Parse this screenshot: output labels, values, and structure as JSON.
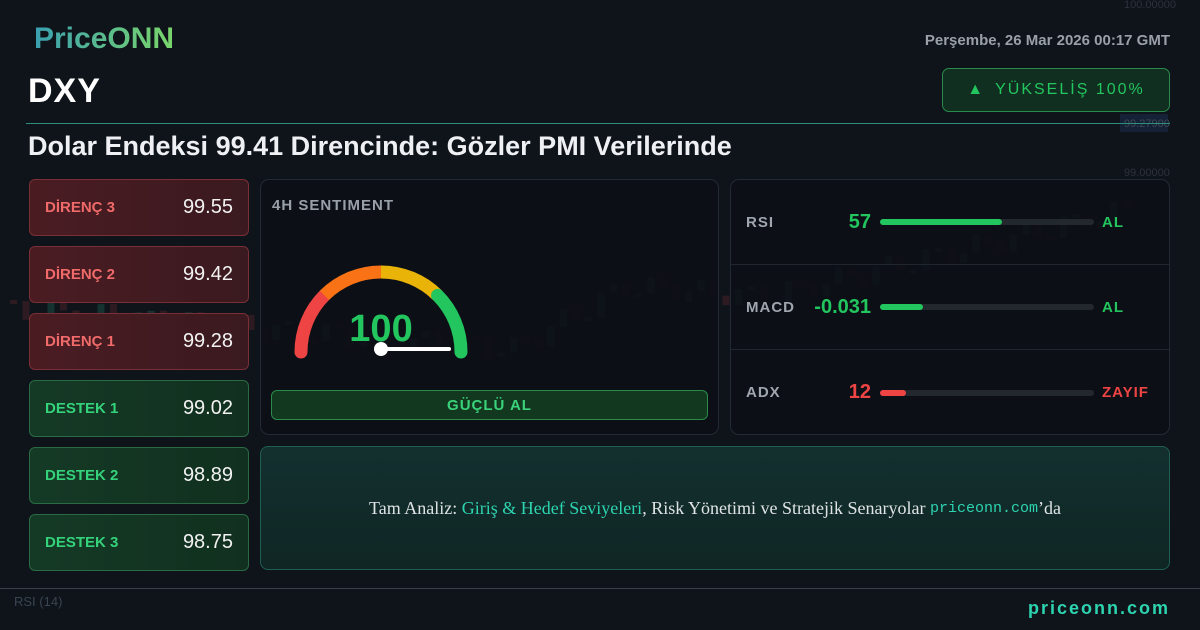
{
  "brand": {
    "logo": "PriceONN",
    "site": "priceonn.com"
  },
  "header": {
    "ticker": "DXY",
    "date": "Perşembe, 26 Mar 2026 00:17 GMT",
    "trend_label": "YÜKSELİŞ 100%",
    "trend_icon": "triangle-up-icon",
    "headline": "Dolar Endeksi 99.41 Direncinde: Gözler PMI Verilerinde"
  },
  "levels": [
    {
      "name": "DİRENÇ 3",
      "value": "99.55",
      "type": "resistance"
    },
    {
      "name": "DİRENÇ 2",
      "value": "99.42",
      "type": "resistance"
    },
    {
      "name": "DİRENÇ 1",
      "value": "99.28",
      "type": "resistance"
    },
    {
      "name": "DESTEK 1",
      "value": "99.02",
      "type": "support"
    },
    {
      "name": "DESTEK 2",
      "value": "98.89",
      "type": "support"
    },
    {
      "name": "DESTEK 3",
      "value": "98.75",
      "type": "support"
    }
  ],
  "sentiment": {
    "title": "4H SENTIMENT",
    "value": "100",
    "gauge_value": 100,
    "label": "GÜÇLÜ AL"
  },
  "indicators": [
    {
      "name": "RSI",
      "value": "57",
      "signal": "AL",
      "fill_percent": 57,
      "color": "#22c55e"
    },
    {
      "name": "MACD",
      "value": "-0.031",
      "signal": "AL",
      "fill_percent": 20,
      "color": "#22c55e"
    },
    {
      "name": "ADX",
      "value": "12",
      "signal": "ZAYIF",
      "fill_percent": 12,
      "color": "#ef4444"
    }
  ],
  "cta": {
    "prefix": "Tam Analiz: ",
    "highlight": "Giriş & Hedef Seviyeleri",
    "middle": ", Risk Yönetimi ve Stratejik Senaryolar ",
    "site": "priceonn.com",
    "suffix": "’da"
  },
  "background_chart": {
    "price_label": "99.27900",
    "axis": [
      "100.00000",
      "99.00000"
    ],
    "indicator_label": "RSI (14)"
  },
  "colors": {
    "bull": "#22c55e",
    "bear": "#ef4444",
    "accent": "#2dd4b0"
  }
}
